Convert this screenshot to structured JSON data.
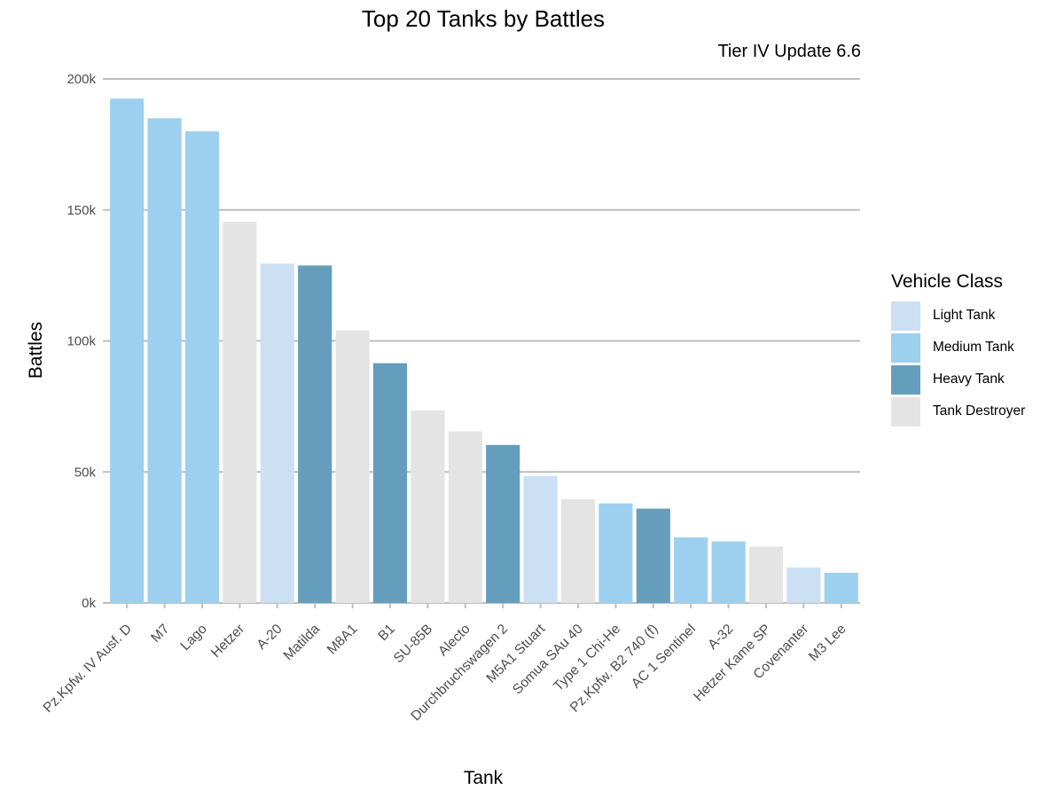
{
  "chart_data": {
    "type": "bar",
    "title": "Top 20 Tanks by Battles",
    "subtitle": "Tier IV Update 6.6",
    "xlabel": "Tank",
    "ylabel": "Battles",
    "ylim": [
      0,
      200000
    ],
    "yticks": [
      0,
      50000,
      100000,
      150000,
      200000
    ],
    "ytick_labels": [
      "0k",
      "50k",
      "100k",
      "150k",
      "200k"
    ],
    "grid": "horizontal",
    "legend_title": "Vehicle Class",
    "legend_position": "right",
    "classes": [
      {
        "name": "Light Tank",
        "color": "#cce0f3"
      },
      {
        "name": "Medium Tank",
        "color": "#9dd0ef"
      },
      {
        "name": "Heavy Tank",
        "color": "#659ebd"
      },
      {
        "name": "Tank Destroyer",
        "color": "#e4e4e4"
      }
    ],
    "categories": [
      "Pz.Kpfw. IV Ausf. D",
      "M7",
      "Lago",
      "Hetzer",
      "A-20",
      "Matilda",
      "M8A1",
      "B1",
      "SU-85B",
      "Alecto",
      "Durchbruchswagen 2",
      "M5A1 Stuart",
      "Somua SAu 40",
      "Type 1 Chi-He",
      "Pz.Kpfw. B2 740 (f)",
      "AC 1 Sentinel",
      "A-32",
      "Hetzer Kame SP",
      "Covenanter",
      "M3 Lee"
    ],
    "values": [
      192500,
      185000,
      180000,
      145500,
      129500,
      128800,
      104000,
      91500,
      73500,
      65500,
      60300,
      48500,
      39600,
      38000,
      36000,
      25000,
      23500,
      21500,
      13500,
      11500
    ],
    "class_of_bar": [
      "Medium Tank",
      "Medium Tank",
      "Medium Tank",
      "Tank Destroyer",
      "Light Tank",
      "Heavy Tank",
      "Tank Destroyer",
      "Heavy Tank",
      "Tank Destroyer",
      "Tank Destroyer",
      "Heavy Tank",
      "Light Tank",
      "Tank Destroyer",
      "Medium Tank",
      "Heavy Tank",
      "Medium Tank",
      "Medium Tank",
      "Tank Destroyer",
      "Light Tank",
      "Medium Tank"
    ]
  }
}
